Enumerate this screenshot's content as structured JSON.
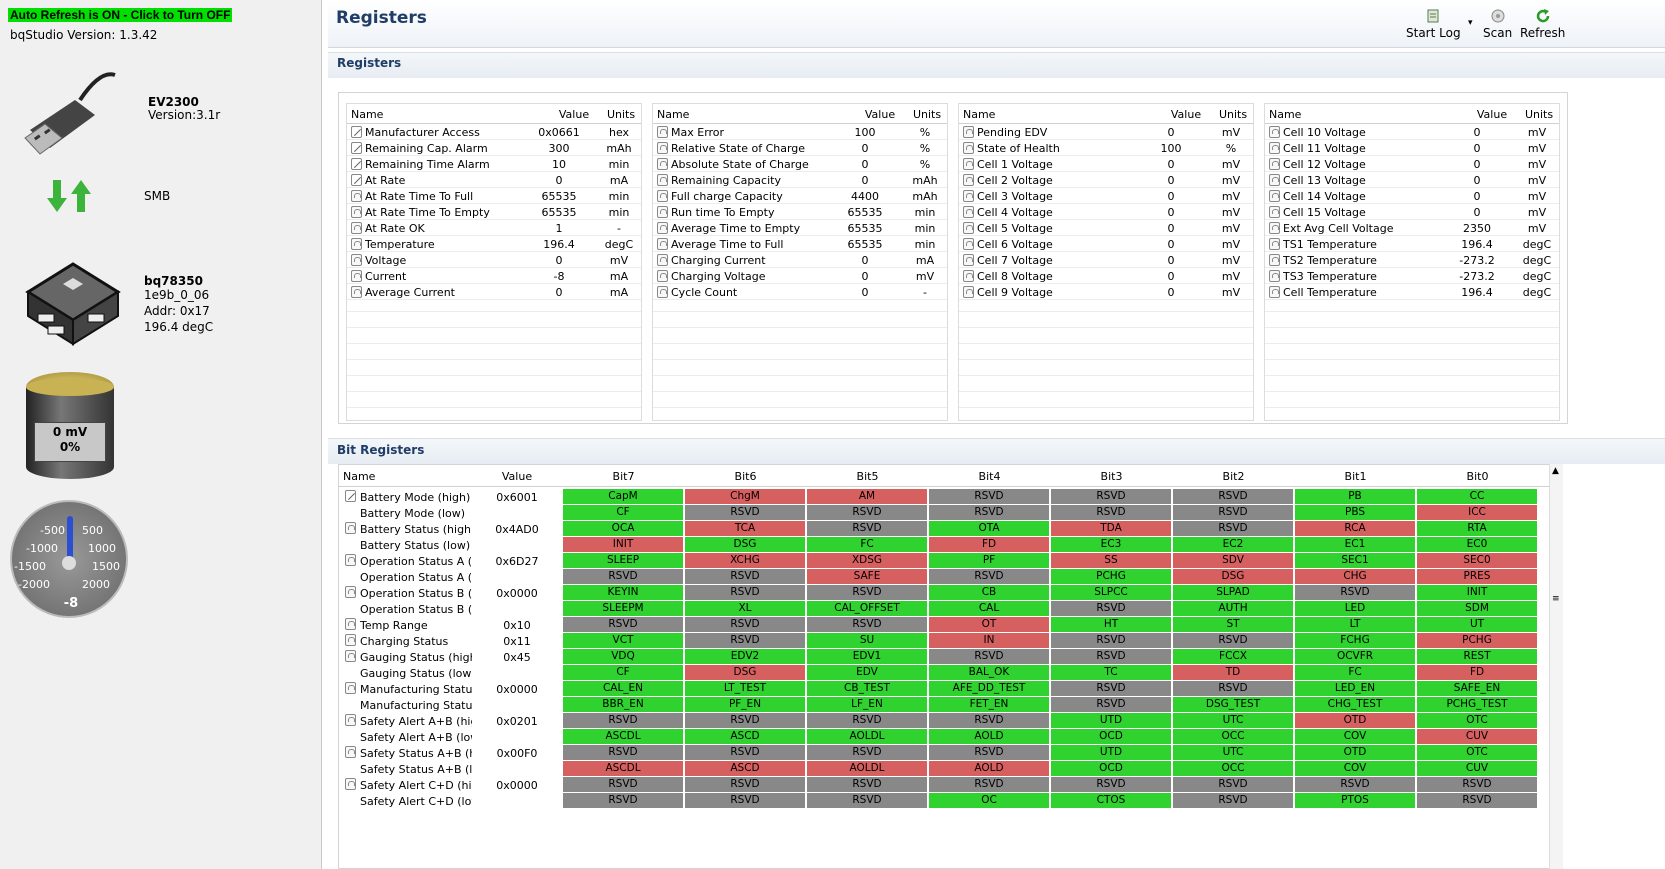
{
  "sidebar": {
    "auto_refresh": "Auto Refresh is ON - Click to Turn OFF",
    "version": "bqStudio Version:  1.3.42",
    "ev_name": "EV2300",
    "ev_version": "Version:3.1r",
    "bus": "SMB",
    "chip_name": "bq78350",
    "chip_fw": "1e9b_0_06",
    "chip_addr": "Addr: 0x17",
    "chip_temp": "196.4 degC",
    "battery_mv": "0 mV",
    "battery_pct": "0%",
    "gauge_ticks": [
      "-500",
      "500",
      "-1000",
      "1000",
      "-1500",
      "1500",
      "-2000",
      "2000"
    ],
    "gauge_value": "-8"
  },
  "header": {
    "title": "Registers",
    "start_log": "Start Log",
    "scan": "Scan",
    "refresh": "Refresh"
  },
  "registers_section": "Registers",
  "bit_section": "Bit Registers",
  "reg_cols": {
    "name": "Name",
    "value": "Value",
    "units": "Units"
  },
  "reg_tables": [
    [
      [
        "Manufacturer Access",
        "0x0661",
        "hex",
        "pen"
      ],
      [
        "Remaining Cap. Alarm",
        "300",
        "mAh",
        "pen"
      ],
      [
        "Remaining Time Alarm",
        "10",
        "min",
        "pen"
      ],
      [
        "At Rate",
        "0",
        "mA",
        "pen"
      ],
      [
        "At Rate Time To Full",
        "65535",
        "min",
        "lock"
      ],
      [
        "At Rate Time To Empty",
        "65535",
        "min",
        "lock"
      ],
      [
        "At Rate OK",
        "1",
        "-",
        "lock"
      ],
      [
        "Temperature",
        "196.4",
        "degC",
        "lock"
      ],
      [
        "Voltage",
        "0",
        "mV",
        "lock"
      ],
      [
        "Current",
        "-8",
        "mA",
        "lock"
      ],
      [
        "Average Current",
        "0",
        "mA",
        "lock"
      ]
    ],
    [
      [
        "Max Error",
        "100",
        "%",
        "lock"
      ],
      [
        "Relative State of Charge",
        "0",
        "%",
        "lock"
      ],
      [
        "Absolute State of Charge",
        "0",
        "%",
        "lock"
      ],
      [
        "Remaining Capacity",
        "0",
        "mAh",
        "lock"
      ],
      [
        "Full charge Capacity",
        "4400",
        "mAh",
        "lock"
      ],
      [
        "Run time To Empty",
        "65535",
        "min",
        "lock"
      ],
      [
        "Average Time to Empty",
        "65535",
        "min",
        "lock"
      ],
      [
        "Average Time to Full",
        "65535",
        "min",
        "lock"
      ],
      [
        "Charging Current",
        "0",
        "mA",
        "lock"
      ],
      [
        "Charging Voltage",
        "0",
        "mV",
        "lock"
      ],
      [
        "Cycle Count",
        "0",
        "-",
        "lock"
      ]
    ],
    [
      [
        "Pending EDV",
        "0",
        "mV",
        "lock"
      ],
      [
        "State of Health",
        "100",
        "%",
        "lock"
      ],
      [
        "Cell 1 Voltage",
        "0",
        "mV",
        "lock"
      ],
      [
        "Cell 2 Voltage",
        "0",
        "mV",
        "lock"
      ],
      [
        "Cell 3 Voltage",
        "0",
        "mV",
        "lock"
      ],
      [
        "Cell 4 Voltage",
        "0",
        "mV",
        "lock"
      ],
      [
        "Cell 5 Voltage",
        "0",
        "mV",
        "lock"
      ],
      [
        "Cell 6 Voltage",
        "0",
        "mV",
        "lock"
      ],
      [
        "Cell 7 Voltage",
        "0",
        "mV",
        "lock"
      ],
      [
        "Cell 8 Voltage",
        "0",
        "mV",
        "lock"
      ],
      [
        "Cell 9 Voltage",
        "0",
        "mV",
        "lock"
      ]
    ],
    [
      [
        "Cell 10 Voltage",
        "0",
        "mV",
        "lock"
      ],
      [
        "Cell 11 Voltage",
        "0",
        "mV",
        "lock"
      ],
      [
        "Cell 12 Voltage",
        "0",
        "mV",
        "lock"
      ],
      [
        "Cell 13 Voltage",
        "0",
        "mV",
        "lock"
      ],
      [
        "Cell 14 Voltage",
        "0",
        "mV",
        "lock"
      ],
      [
        "Cell 15 Voltage",
        "0",
        "mV",
        "lock"
      ],
      [
        "Ext Avg Cell Voltage",
        "2350",
        "mV",
        "lock"
      ],
      [
        "TS1 Temperature",
        "196.4",
        "degC",
        "lock"
      ],
      [
        "TS2 Temperature",
        "-273.2",
        "degC",
        "lock"
      ],
      [
        "TS3 Temperature",
        "-273.2",
        "degC",
        "lock"
      ],
      [
        "Cell Temperature",
        "196.4",
        "degC",
        "lock"
      ]
    ]
  ],
  "bit_cols": [
    "Name",
    "Value",
    "Bit7",
    "Bit6",
    "Bit5",
    "Bit4",
    "Bit3",
    "Bit2",
    "Bit1",
    "Bit0"
  ],
  "bit_rows": [
    {
      "name": "Battery Mode (high)",
      "value": "0x6001",
      "icon": "pen",
      "bits": [
        [
          "CapM",
          "g"
        ],
        [
          "ChgM",
          "r"
        ],
        [
          "AM",
          "r"
        ],
        [
          "RSVD",
          "y"
        ],
        [
          "RSVD",
          "y"
        ],
        [
          "RSVD",
          "y"
        ],
        [
          "PB",
          "g"
        ],
        [
          "CC",
          "g"
        ]
      ]
    },
    {
      "name": "Battery Mode (low)",
      "value": "",
      "icon": "",
      "bits": [
        [
          "CF",
          "g"
        ],
        [
          "RSVD",
          "y"
        ],
        [
          "RSVD",
          "y"
        ],
        [
          "RSVD",
          "y"
        ],
        [
          "RSVD",
          "y"
        ],
        [
          "RSVD",
          "y"
        ],
        [
          "PBS",
          "g"
        ],
        [
          "ICC",
          "r"
        ]
      ]
    },
    {
      "name": "Battery Status (high)",
      "value": "0x4AD0",
      "icon": "lock",
      "bits": [
        [
          "OCA",
          "g"
        ],
        [
          "TCA",
          "r"
        ],
        [
          "RSVD",
          "y"
        ],
        [
          "OTA",
          "g"
        ],
        [
          "TDA",
          "r"
        ],
        [
          "RSVD",
          "y"
        ],
        [
          "RCA",
          "r"
        ],
        [
          "RTA",
          "g"
        ]
      ]
    },
    {
      "name": "Battery Status (low)",
      "value": "",
      "icon": "",
      "bits": [
        [
          "INIT",
          "r"
        ],
        [
          "DSG",
          "g"
        ],
        [
          "FC",
          "g"
        ],
        [
          "FD",
          "r"
        ],
        [
          "EC3",
          "g"
        ],
        [
          "EC2",
          "g"
        ],
        [
          "EC1",
          "g"
        ],
        [
          "EC0",
          "g"
        ]
      ]
    },
    {
      "name": "Operation Status A (...",
      "value": "0x6D27",
      "icon": "lock",
      "bits": [
        [
          "SLEEP",
          "g"
        ],
        [
          "XCHG",
          "r"
        ],
        [
          "XDSG",
          "r"
        ],
        [
          "PF",
          "g"
        ],
        [
          "SS",
          "r"
        ],
        [
          "SDV",
          "r"
        ],
        [
          "SEC1",
          "g"
        ],
        [
          "SEC0",
          "r"
        ]
      ]
    },
    {
      "name": "Operation Status A (l...",
      "value": "",
      "icon": "",
      "bits": [
        [
          "RSVD",
          "y"
        ],
        [
          "RSVD",
          "y"
        ],
        [
          "SAFE",
          "r"
        ],
        [
          "RSVD",
          "y"
        ],
        [
          "PCHG",
          "g"
        ],
        [
          "DSG",
          "r"
        ],
        [
          "CHG",
          "r"
        ],
        [
          "PRES",
          "r"
        ]
      ]
    },
    {
      "name": "Operation Status B (h...",
      "value": "0x0000",
      "icon": "lock",
      "bits": [
        [
          "KEYIN",
          "g"
        ],
        [
          "RSVD",
          "y"
        ],
        [
          "RSVD",
          "y"
        ],
        [
          "CB",
          "g"
        ],
        [
          "SLPCC",
          "g"
        ],
        [
          "SLPAD",
          "g"
        ],
        [
          "RSVD",
          "y"
        ],
        [
          "INIT",
          "g"
        ]
      ]
    },
    {
      "name": "Operation Status B (l...",
      "value": "",
      "icon": "",
      "bits": [
        [
          "SLEEPM",
          "g"
        ],
        [
          "XL",
          "g"
        ],
        [
          "CAL_OFFSET",
          "g"
        ],
        [
          "CAL",
          "g"
        ],
        [
          "RSVD",
          "y"
        ],
        [
          "AUTH",
          "g"
        ],
        [
          "LED",
          "g"
        ],
        [
          "SDM",
          "g"
        ]
      ]
    },
    {
      "name": "Temp Range",
      "value": "0x10",
      "icon": "lock",
      "bits": [
        [
          "RSVD",
          "y"
        ],
        [
          "RSVD",
          "y"
        ],
        [
          "RSVD",
          "y"
        ],
        [
          "OT",
          "r"
        ],
        [
          "HT",
          "g"
        ],
        [
          "ST",
          "g"
        ],
        [
          "LT",
          "g"
        ],
        [
          "UT",
          "g"
        ]
      ]
    },
    {
      "name": "Charging Status",
      "value": "0x11",
      "icon": "lock",
      "bits": [
        [
          "VCT",
          "g"
        ],
        [
          "RSVD",
          "y"
        ],
        [
          "SU",
          "g"
        ],
        [
          "IN",
          "r"
        ],
        [
          "RSVD",
          "y"
        ],
        [
          "RSVD",
          "y"
        ],
        [
          "FCHG",
          "g"
        ],
        [
          "PCHG",
          "r"
        ]
      ]
    },
    {
      "name": "Gauging Status (high)",
      "value": "0x45",
      "icon": "lock",
      "bits": [
        [
          "VDQ",
          "g"
        ],
        [
          "EDV2",
          "g"
        ],
        [
          "EDV1",
          "g"
        ],
        [
          "RSVD",
          "y"
        ],
        [
          "RSVD",
          "y"
        ],
        [
          "FCCX",
          "g"
        ],
        [
          "OCVFR",
          "g"
        ],
        [
          "REST",
          "g"
        ]
      ]
    },
    {
      "name": "Gauging Status (low)",
      "value": "",
      "icon": "",
      "bits": [
        [
          "CF",
          "g"
        ],
        [
          "DSG",
          "r"
        ],
        [
          "EDV",
          "g"
        ],
        [
          "BAL_OK",
          "g"
        ],
        [
          "TC",
          "g"
        ],
        [
          "TD",
          "r"
        ],
        [
          "FC",
          "g"
        ],
        [
          "FD",
          "r"
        ]
      ]
    },
    {
      "name": "Manufacturing Status...",
      "value": "0x0000",
      "icon": "lock",
      "bits": [
        [
          "CAL_EN",
          "g"
        ],
        [
          "LT_TEST",
          "g"
        ],
        [
          "CB_TEST",
          "g"
        ],
        [
          "AFE_DD_TEST",
          "g"
        ],
        [
          "RSVD",
          "y"
        ],
        [
          "RSVD",
          "y"
        ],
        [
          "LED_EN",
          "g"
        ],
        [
          "SAFE_EN",
          "g"
        ]
      ]
    },
    {
      "name": "Manufacturing Status...",
      "value": "",
      "icon": "",
      "bits": [
        [
          "BBR_EN",
          "g"
        ],
        [
          "PF_EN",
          "g"
        ],
        [
          "LF_EN",
          "g"
        ],
        [
          "FET_EN",
          "g"
        ],
        [
          "RSVD",
          "y"
        ],
        [
          "DSG_TEST",
          "g"
        ],
        [
          "CHG_TEST",
          "g"
        ],
        [
          "PCHG_TEST",
          "g"
        ]
      ]
    },
    {
      "name": "Safety Alert A+B (high)",
      "value": "0x0201",
      "icon": "lock",
      "bits": [
        [
          "RSVD",
          "y"
        ],
        [
          "RSVD",
          "y"
        ],
        [
          "RSVD",
          "y"
        ],
        [
          "RSVD",
          "y"
        ],
        [
          "UTD",
          "g"
        ],
        [
          "UTC",
          "g"
        ],
        [
          "OTD",
          "r"
        ],
        [
          "OTC",
          "g"
        ]
      ]
    },
    {
      "name": "Safety Alert A+B (low)",
      "value": "",
      "icon": "",
      "bits": [
        [
          "ASCDL",
          "g"
        ],
        [
          "ASCD",
          "g"
        ],
        [
          "AOLDL",
          "g"
        ],
        [
          "AOLD",
          "g"
        ],
        [
          "OCD",
          "g"
        ],
        [
          "OCC",
          "g"
        ],
        [
          "COV",
          "g"
        ],
        [
          "CUV",
          "r"
        ]
      ]
    },
    {
      "name": "Safety Status A+B (h...",
      "value": "0x00F0",
      "icon": "lock",
      "bits": [
        [
          "RSVD",
          "y"
        ],
        [
          "RSVD",
          "y"
        ],
        [
          "RSVD",
          "y"
        ],
        [
          "RSVD",
          "y"
        ],
        [
          "UTD",
          "g"
        ],
        [
          "UTC",
          "g"
        ],
        [
          "OTD",
          "g"
        ],
        [
          "OTC",
          "g"
        ]
      ]
    },
    {
      "name": "Safety Status A+B (l...",
      "value": "",
      "icon": "",
      "bits": [
        [
          "ASCDL",
          "r"
        ],
        [
          "ASCD",
          "r"
        ],
        [
          "AOLDL",
          "r"
        ],
        [
          "AOLD",
          "r"
        ],
        [
          "OCD",
          "g"
        ],
        [
          "OCC",
          "g"
        ],
        [
          "COV",
          "g"
        ],
        [
          "CUV",
          "g"
        ]
      ]
    },
    {
      "name": "Safety Alert C+D (high)",
      "value": "0x0000",
      "icon": "lock",
      "bits": [
        [
          "RSVD",
          "y"
        ],
        [
          "RSVD",
          "y"
        ],
        [
          "RSVD",
          "y"
        ],
        [
          "RSVD",
          "y"
        ],
        [
          "RSVD",
          "y"
        ],
        [
          "RSVD",
          "y"
        ],
        [
          "RSVD",
          "y"
        ],
        [
          "RSVD",
          "y"
        ]
      ]
    },
    {
      "name": "Safety Alert C+D (low)",
      "value": "",
      "icon": "",
      "bits": [
        [
          "RSVD",
          "y"
        ],
        [
          "RSVD",
          "y"
        ],
        [
          "RSVD",
          "y"
        ],
        [
          "OC",
          "g"
        ],
        [
          "CTOS",
          "g"
        ],
        [
          "RSVD",
          "y"
        ],
        [
          "PTOS",
          "g"
        ],
        [
          "RSVD",
          "y"
        ]
      ]
    }
  ]
}
